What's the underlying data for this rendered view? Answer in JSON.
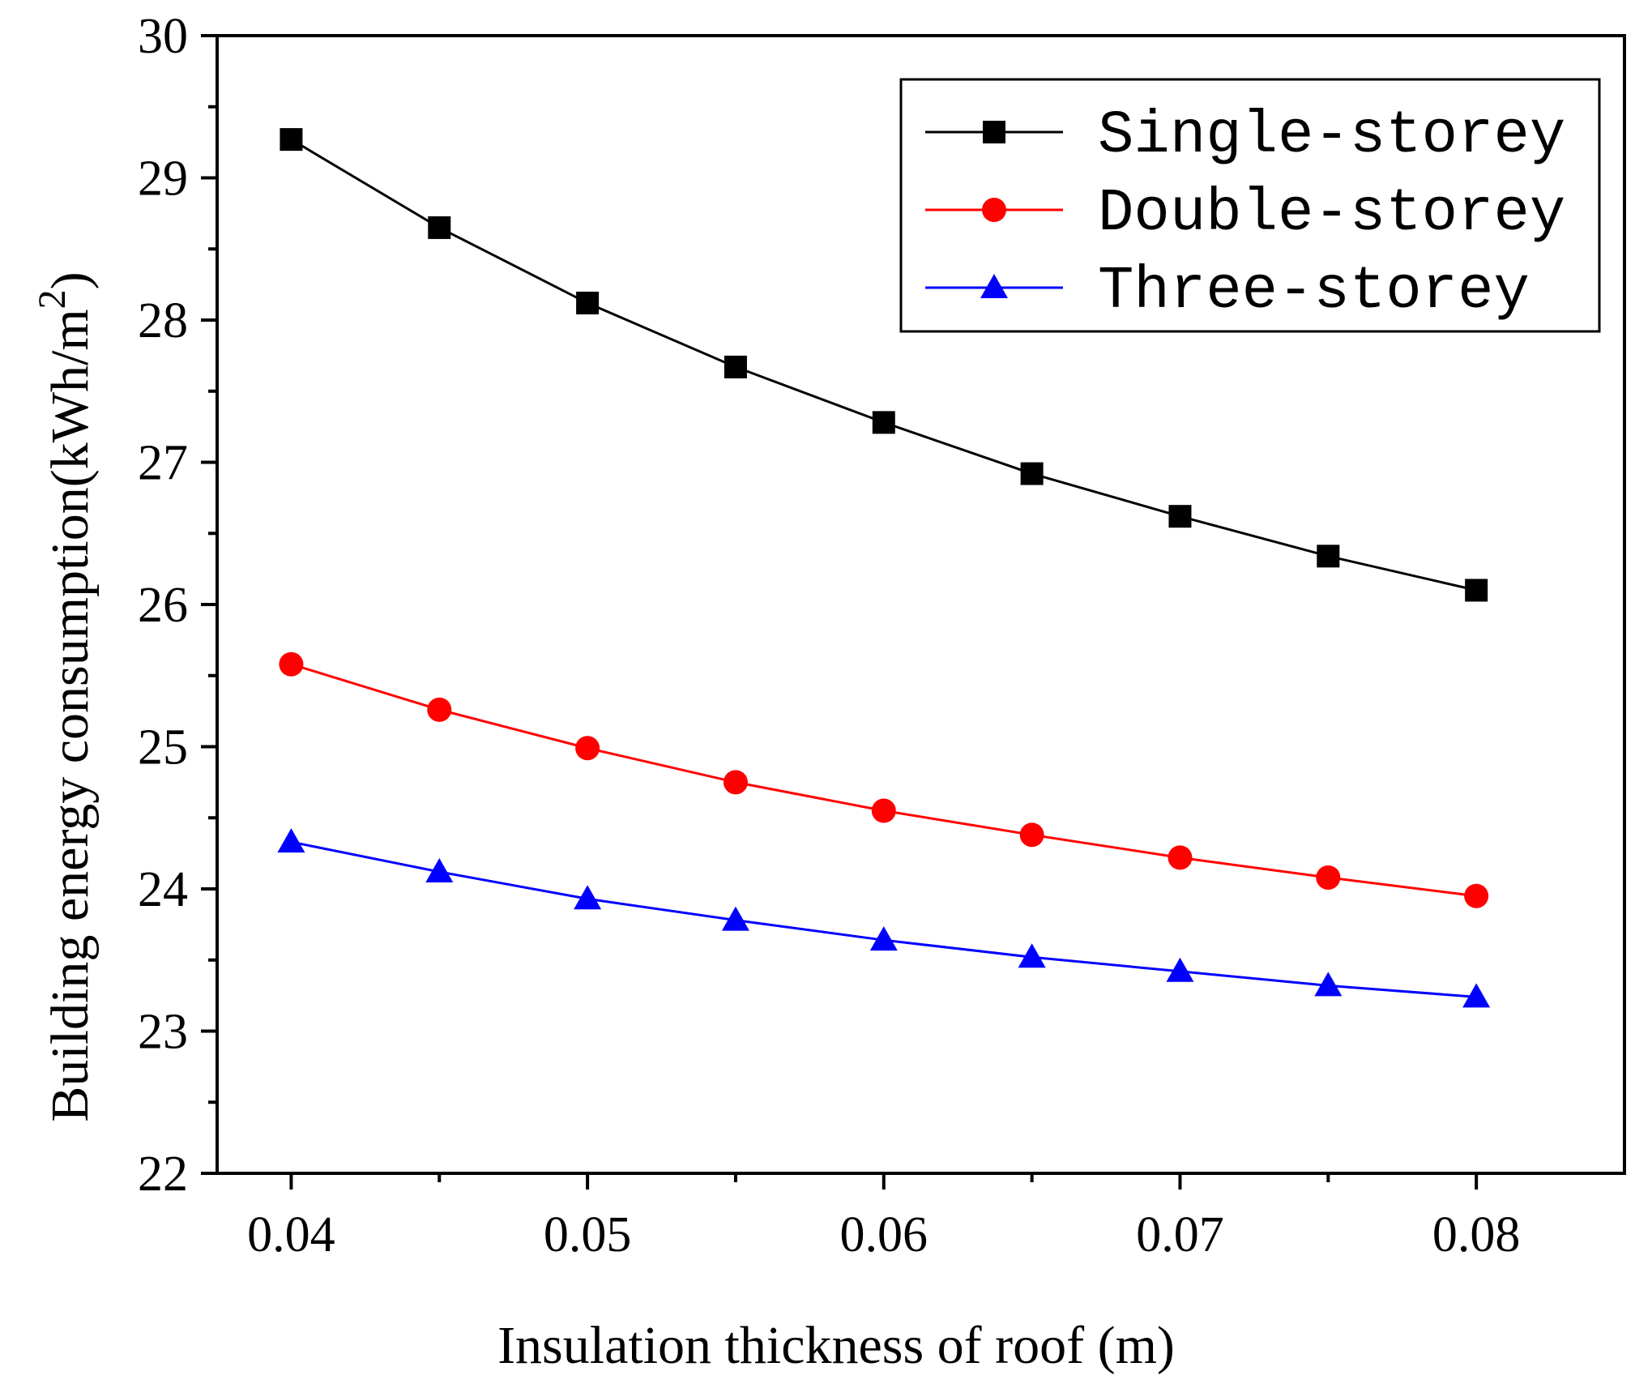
{
  "chart_data": {
    "type": "line",
    "title": "",
    "xlabel": "Insulation thickness of roof (m)",
    "ylabel": "Building energy consumption(kWh/m",
    "ylabel_superscript": "2",
    "ylabel_suffix": ")",
    "xlim": [
      0.0375,
      0.085
    ],
    "ylim": [
      22,
      30
    ],
    "x_ticks": [
      0.04,
      0.05,
      0.06,
      0.07,
      0.08
    ],
    "x_tick_labels": [
      "0.04",
      "0.05",
      "0.06",
      "0.07",
      "0.08"
    ],
    "y_ticks": [
      22,
      23,
      24,
      25,
      26,
      27,
      28,
      29,
      30
    ],
    "y_tick_labels": [
      "22",
      "23",
      "24",
      "25",
      "26",
      "27",
      "28",
      "29",
      "30"
    ],
    "grid": false,
    "legend_position": "top-right",
    "x": [
      0.04,
      0.045,
      0.05,
      0.055,
      0.06,
      0.065,
      0.07,
      0.075,
      0.08
    ],
    "series": [
      {
        "name": "Single-storey",
        "color": "#000000",
        "marker": "square",
        "values": [
          29.27,
          28.65,
          28.12,
          27.67,
          27.28,
          26.92,
          26.62,
          26.34,
          26.1
        ]
      },
      {
        "name": "Double-storey",
        "color": "#ff0000",
        "marker": "circle",
        "values": [
          25.58,
          25.26,
          24.99,
          24.75,
          24.55,
          24.38,
          24.22,
          24.08,
          23.95
        ]
      },
      {
        "name": "Three-storey",
        "color": "#0000ff",
        "marker": "triangle",
        "values": [
          24.33,
          24.12,
          23.93,
          23.78,
          23.64,
          23.52,
          23.42,
          23.32,
          23.24
        ]
      }
    ]
  }
}
